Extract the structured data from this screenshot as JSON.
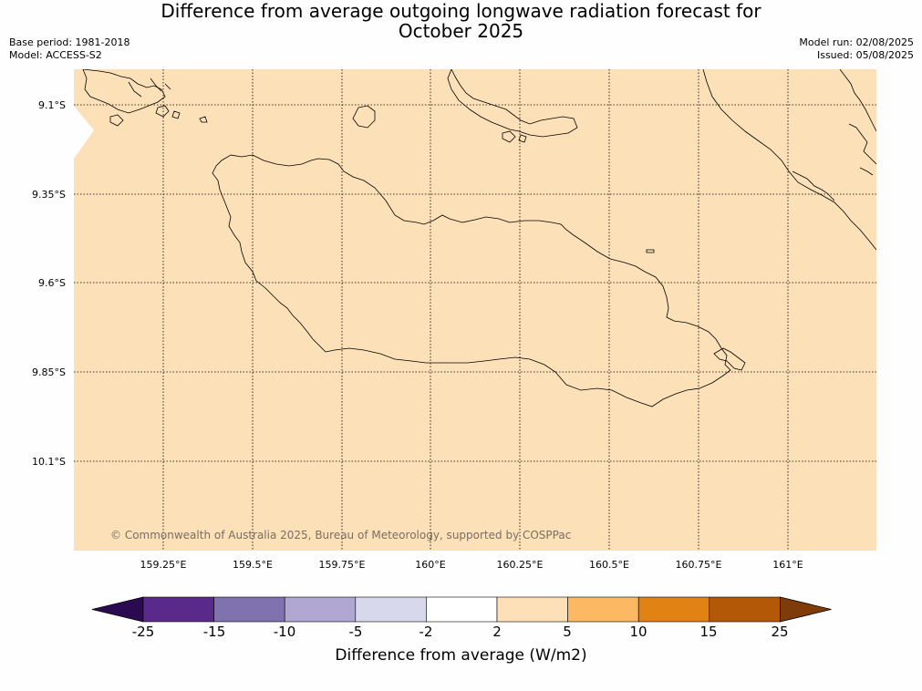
{
  "title": {
    "line1": "Difference from average outgoing longwave radiation forecast for",
    "line2": "October 2025"
  },
  "meta_left": {
    "base_period": "Base period: 1981-2018",
    "model": "Model: ACCESS-S2"
  },
  "meta_right": {
    "model_run": "Model run: 02/08/2025",
    "issued": "Issued: 05/08/2025"
  },
  "map": {
    "fill_category": "2 to 5",
    "fill_color": "#fce0b8",
    "coastline_color": "#000000",
    "gridlines": "dotted",
    "lat_ticks": [
      "9.1°S",
      "9.35°S",
      "9.6°S",
      "9.85°S",
      "10.1°S"
    ],
    "lon_ticks": [
      "159.25°E",
      "159.5°E",
      "159.75°E",
      "160°E",
      "160.25°E",
      "160.5°E",
      "160.75°E",
      "161°E"
    ],
    "copyright": "© Commonwealth of Australia 2025, Bureau of Meteorology, supported by COSPPac"
  },
  "colorbar": {
    "title": "Difference from average (W/m2)",
    "ticks": [
      "-25",
      "-15",
      "-10",
      "-5",
      "-2",
      "2",
      "5",
      "10",
      "15",
      "25"
    ],
    "colors": [
      "#2c0a52",
      "#5a2a8a",
      "#8072ae",
      "#b0a8d2",
      "#d8d8ec",
      "#ffffff",
      "#fde0b8",
      "#fdb863",
      "#e08214",
      "#b35806",
      "#7f3b08"
    ]
  }
}
